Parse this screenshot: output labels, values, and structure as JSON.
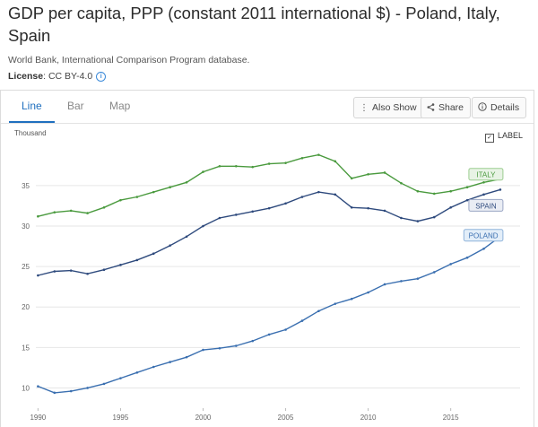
{
  "page": {
    "title": "GDP per capita, PPP (constant 2011 international $) - Poland, Italy, Spain",
    "source": "World Bank, International Comparison Program database.",
    "license_label": "License",
    "license_value": ": CC BY-4.0",
    "info_icon": "i"
  },
  "tabs": [
    {
      "label": "Line",
      "active": true
    },
    {
      "label": "Bar",
      "active": false
    },
    {
      "label": "Map",
      "active": false
    }
  ],
  "actions": {
    "also_show": {
      "label": "Also Show",
      "icon": "more-vertical-icon"
    },
    "share": {
      "label": "Share",
      "icon": "share-icon"
    },
    "details": {
      "label": "Details",
      "icon": "info-circle-icon"
    }
  },
  "label_toggle": {
    "label": "LABEL",
    "checked": true
  },
  "chart_data": {
    "type": "line",
    "unit_label": "Thousand",
    "x": [
      1990,
      1991,
      1992,
      1993,
      1994,
      1995,
      1996,
      1997,
      1998,
      1999,
      2000,
      2001,
      2002,
      2003,
      2004,
      2005,
      2006,
      2007,
      2008,
      2009,
      2010,
      2011,
      2012,
      2013,
      2014,
      2015,
      2016,
      2017,
      2018
    ],
    "x_ticks": [
      1990,
      1995,
      2000,
      2005,
      2010,
      2015
    ],
    "y_ticks": [
      10,
      15,
      20,
      25,
      30,
      35
    ],
    "ylim": [
      7.5,
      40.2
    ],
    "xlim": [
      1989.6,
      2019.2
    ],
    "grid": "horizontal",
    "series": [
      {
        "name": "ITALY",
        "color": "#4a9a3e",
        "label_bg": "#e8f3e5",
        "label_border": "#9ccd90",
        "values": [
          31.2,
          31.7,
          31.9,
          31.6,
          32.3,
          33.2,
          33.6,
          34.2,
          34.8,
          35.4,
          36.7,
          37.4,
          37.4,
          37.3,
          37.7,
          37.8,
          38.4,
          38.8,
          38.0,
          35.9,
          36.4,
          36.6,
          35.3,
          34.3,
          34.0,
          34.3,
          34.8,
          35.4,
          35.8
        ]
      },
      {
        "name": "SPAIN",
        "color": "#2e4a7d",
        "label_bg": "#eaedf4",
        "label_border": "#9aa6c4",
        "values": [
          23.9,
          24.4,
          24.5,
          24.1,
          24.6,
          25.2,
          25.8,
          26.6,
          27.6,
          28.7,
          30.0,
          31.0,
          31.4,
          31.8,
          32.2,
          32.8,
          33.6,
          34.2,
          33.9,
          32.3,
          32.2,
          31.9,
          31.0,
          30.6,
          31.1,
          32.3,
          33.2,
          33.9,
          34.5
        ]
      },
      {
        "name": "POLAND",
        "color": "#3a6fb0",
        "label_bg": "#e3eef9",
        "label_border": "#8fb3da",
        "values": [
          10.2,
          9.4,
          9.6,
          10.0,
          10.5,
          11.2,
          11.9,
          12.6,
          13.2,
          13.8,
          14.7,
          14.9,
          15.2,
          15.8,
          16.6,
          17.2,
          18.3,
          19.5,
          20.4,
          21.0,
          21.8,
          22.8,
          23.2,
          23.5,
          24.3,
          25.3,
          26.1,
          27.2,
          28.7
        ]
      }
    ]
  }
}
